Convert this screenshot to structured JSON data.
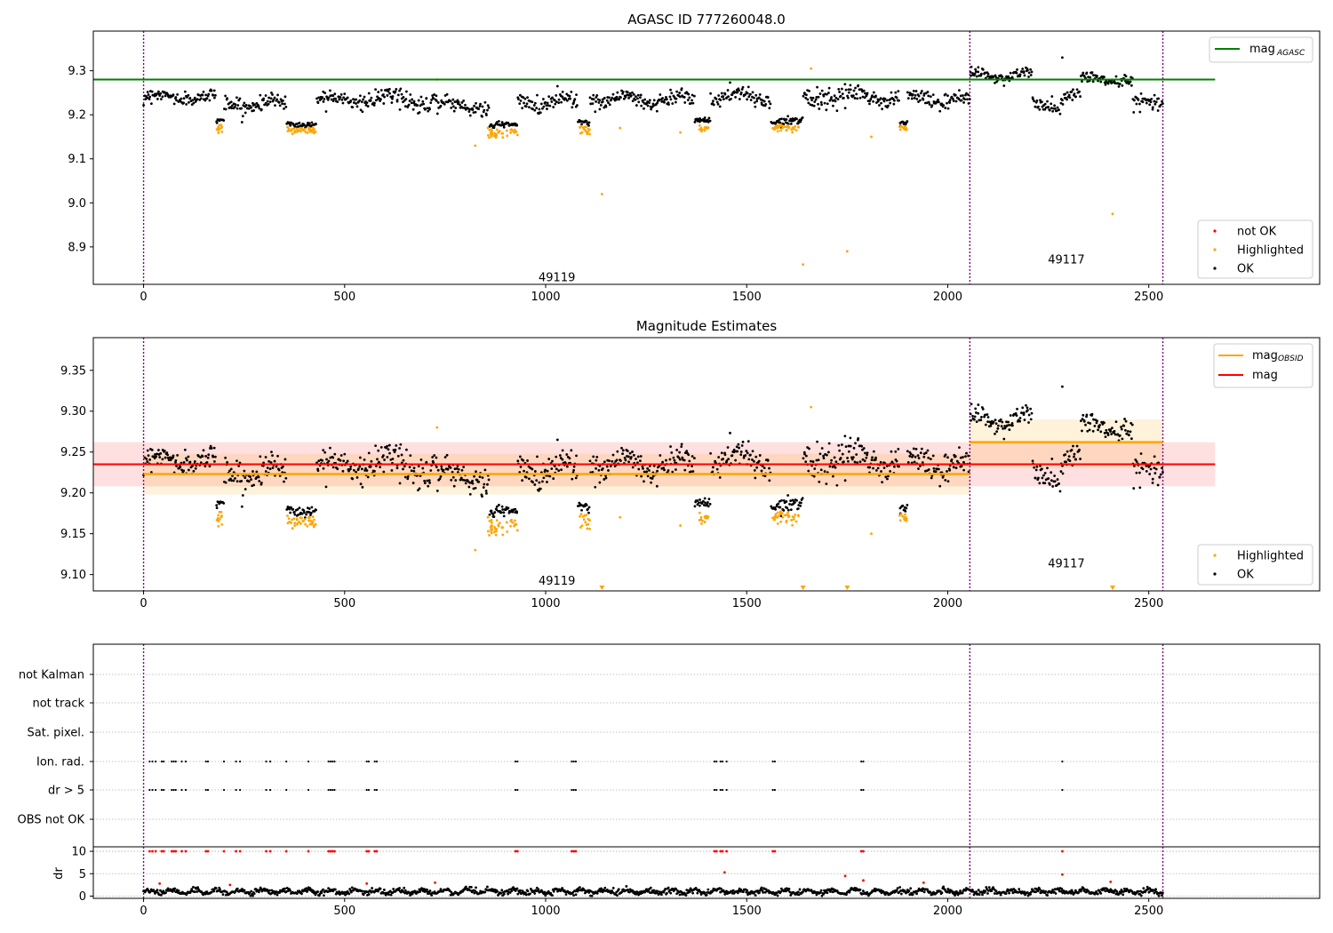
{
  "chart_data": [
    {
      "type": "scatter",
      "title": "AGASC ID 777260048.0",
      "xlabel": "",
      "ylabel": "",
      "xlim": [
        -125,
        2925
      ],
      "ylim": [
        8.815,
        9.39
      ],
      "x_ticks": [
        0,
        500,
        1000,
        1500,
        2000,
        2500
      ],
      "y_ticks": [
        8.9,
        9.0,
        9.1,
        9.2,
        9.3
      ],
      "y_tick_labels": [
        "8.9",
        "9.0",
        "9.1",
        "9.2",
        "9.3"
      ],
      "grid": false,
      "legend_top": {
        "placement": "top-right",
        "entries": [
          {
            "label": "mag",
            "sub": "AGASC",
            "color": "#008000"
          }
        ]
      },
      "legend_bottom": {
        "placement": "bottom-right",
        "entries": [
          {
            "label": "not OK",
            "color": "#ff0000"
          },
          {
            "label": "Highlighted",
            "color": "#ffa500"
          },
          {
            "label": "OK",
            "color": "#000000"
          }
        ]
      },
      "hlines": [
        {
          "name": "mag_AGASC",
          "y": 9.28,
          "x": [
            -125,
            2665
          ],
          "color": "#008000"
        }
      ],
      "vlines": [
        0,
        2055,
        2535
      ],
      "obsid_labels": [
        {
          "text": "49119",
          "x": 1028,
          "y": 8.83
        },
        {
          "text": "49117",
          "x": 2295,
          "y": 8.87
        }
      ],
      "segments": [
        {
          "x": [
            0,
            180
          ],
          "level": 9.24,
          "amp": 0.012
        },
        {
          "x": [
            180,
            200
          ],
          "level": 9.185,
          "amp": 0.005
        },
        {
          "x": [
            200,
            355
          ],
          "level": 9.225,
          "amp": 0.015
        },
        {
          "x": [
            355,
            430
          ],
          "level": 9.18,
          "amp": 0.006
        },
        {
          "x": [
            430,
            610
          ],
          "level": 9.235,
          "amp": 0.015
        },
        {
          "x": [
            610,
            730
          ],
          "level": 9.235,
          "amp": 0.02
        },
        {
          "x": [
            730,
            860
          ],
          "level": 9.22,
          "amp": 0.015
        },
        {
          "x": [
            860,
            930
          ],
          "level": 9.175,
          "amp": 0.006
        },
        {
          "x": [
            930,
            1080
          ],
          "level": 9.23,
          "amp": 0.018
        },
        {
          "x": [
            1080,
            1110
          ],
          "level": 9.185,
          "amp": 0.005
        },
        {
          "x": [
            1110,
            1370
          ],
          "level": 9.235,
          "amp": 0.016
        },
        {
          "x": [
            1370,
            1410
          ],
          "level": 9.19,
          "amp": 0.005
        },
        {
          "x": [
            1410,
            1560
          ],
          "level": 9.24,
          "amp": 0.016
        },
        {
          "x": [
            1560,
            1640
          ],
          "level": 9.185,
          "amp": 0.006
        },
        {
          "x": [
            1640,
            1880
          ],
          "level": 9.24,
          "amp": 0.018
        },
        {
          "x": [
            1880,
            1900
          ],
          "level": 9.18,
          "amp": 0.005
        },
        {
          "x": [
            1900,
            2055
          ],
          "level": 9.235,
          "amp": 0.015
        },
        {
          "x": [
            2055,
            2210
          ],
          "level": 9.29,
          "amp": 0.012
        },
        {
          "x": [
            2210,
            2280
          ],
          "level": 9.22,
          "amp": 0.015
        },
        {
          "x": [
            2280,
            2330
          ],
          "level": 9.245,
          "amp": 0.015
        },
        {
          "x": [
            2330,
            2460
          ],
          "level": 9.28,
          "amp": 0.012
        },
        {
          "x": [
            2460,
            2535
          ],
          "level": 9.225,
          "amp": 0.015
        }
      ],
      "highlighted_groups": [
        {
          "x": [
            180,
            195
          ],
          "level": 9.17,
          "amp": 0.008
        },
        {
          "x": [
            355,
            430
          ],
          "level": 9.165,
          "amp": 0.007
        },
        {
          "x": [
            855,
            930
          ],
          "level": 9.16,
          "amp": 0.012
        },
        {
          "x": [
            1085,
            1110
          ],
          "level": 9.165,
          "amp": 0.008
        },
        {
          "x": [
            1380,
            1405
          ],
          "level": 9.17,
          "amp": 0.008
        },
        {
          "x": [
            1560,
            1630
          ],
          "level": 9.17,
          "amp": 0.006
        },
        {
          "x": [
            1880,
            1900
          ],
          "level": 9.17,
          "amp": 0.004
        }
      ],
      "highlighted_points": [
        {
          "x": 825,
          "y": 9.13
        },
        {
          "x": 1140,
          "y": 9.02
        },
        {
          "x": 1185,
          "y": 9.17
        },
        {
          "x": 1335,
          "y": 9.16
        },
        {
          "x": 1640,
          "y": 8.86
        },
        {
          "x": 1660,
          "y": 9.305
        },
        {
          "x": 1750,
          "y": 8.89
        },
        {
          "x": 1810,
          "y": 9.15
        },
        {
          "x": 2410,
          "y": 8.975
        },
        {
          "x": 730,
          "y": 9.28
        }
      ],
      "ok_extra_points": [
        {
          "x": 2285,
          "y": 9.33
        }
      ]
    },
    {
      "type": "scatter",
      "title": "Magnitude Estimates",
      "xlabel": "",
      "ylabel": "",
      "xlim": [
        -125,
        2925
      ],
      "ylim": [
        9.08,
        9.39
      ],
      "x_ticks": [
        0,
        500,
        1000,
        1500,
        2000,
        2500
      ],
      "y_ticks": [
        9.1,
        9.15,
        9.2,
        9.25,
        9.3,
        9.35
      ],
      "y_tick_labels": [
        "9.10",
        "9.15",
        "9.20",
        "9.25",
        "9.30",
        "9.35"
      ],
      "grid": false,
      "legend_top": {
        "placement": "top-right",
        "entries": [
          {
            "label": "mag",
            "sub": "OBSID",
            "color": "#ffa500"
          },
          {
            "label": "mag",
            "sub": "",
            "color": "#ff0000"
          }
        ]
      },
      "legend_bottom": {
        "placement": "bottom-right",
        "entries": [
          {
            "label": "Highlighted",
            "color": "#ffa500"
          },
          {
            "label": "OK",
            "color": "#000000"
          }
        ]
      },
      "mag_band": {
        "x": [
          -125,
          2665
        ],
        "center": 9.235,
        "low": 9.208,
        "high": 9.262
      },
      "obsid_mags": [
        {
          "x": [
            0,
            2055
          ],
          "mag": 9.223,
          "low": 9.198,
          "high": 9.248
        },
        {
          "x": [
            2055,
            2535
          ],
          "mag": 9.262,
          "low": 9.23,
          "high": 9.29
        }
      ],
      "vlines": [
        0,
        2055,
        2535
      ],
      "obsid_labels": [
        {
          "text": "49119",
          "x": 1028,
          "y": 9.092
        },
        {
          "text": "49117",
          "x": 2295,
          "y": 9.113
        }
      ],
      "offscale_markers": [
        1140,
        1640,
        1750,
        2410
      ]
    },
    {
      "type": "scatter",
      "title": "",
      "xlabel": "",
      "ylabel": "",
      "xlim": [
        -125,
        2925
      ],
      "x_ticks": [
        0,
        500,
        1000,
        1500,
        2000,
        2500
      ],
      "flag_rows": [
        "not Kalman",
        "not track",
        "Sat. pixel.",
        "Ion. rad.",
        "dr > 5",
        "OBS not OK"
      ],
      "flag_x": [
        15,
        22,
        30,
        45,
        50,
        70,
        75,
        80,
        95,
        105,
        155,
        160,
        200,
        230,
        240,
        305,
        315,
        355,
        410,
        460,
        465,
        470,
        475,
        555,
        560,
        575,
        580,
        925,
        930,
        1065,
        1070,
        1075,
        1420,
        1425,
        1435,
        1440,
        1450,
        1565,
        1570,
        1785,
        1790,
        2285
      ],
      "dr_x_missing_in_drgt5": [
        1450
      ],
      "vlines": [
        0,
        2055,
        2535
      ]
    },
    {
      "type": "scatter",
      "title": "",
      "xlabel": "",
      "ylabel": "dr",
      "xlim": [
        -125,
        2925
      ],
      "ylim": [
        -0.5,
        11
      ],
      "y_ticks": [
        0,
        5,
        10
      ],
      "y_tick_labels": [
        "0",
        "5",
        "10"
      ],
      "x_ticks": [
        0,
        500,
        1000,
        1500,
        2000,
        2500
      ],
      "x_tick_labels": [
        "0",
        "500",
        "1000",
        "1500",
        "2000",
        "2500"
      ],
      "grid": true,
      "baseline_dr": {
        "level": 1.0,
        "amp": 0.9,
        "x": [
          0,
          2535
        ]
      },
      "red_points": [
        {
          "x": 40,
          "y": 2.8
        },
        {
          "x": 215,
          "y": 2.5
        },
        {
          "x": 555,
          "y": 2.8
        },
        {
          "x": 725,
          "y": 3.0
        },
        {
          "x": 1445,
          "y": 5.3
        },
        {
          "x": 1745,
          "y": 4.5
        },
        {
          "x": 1790,
          "y": 3.5
        },
        {
          "x": 1940,
          "y": 3.0
        },
        {
          "x": 2285,
          "y": 4.8
        },
        {
          "x": 2405,
          "y": 3.2
        }
      ],
      "vlines": [
        0,
        2055,
        2535
      ]
    }
  ]
}
